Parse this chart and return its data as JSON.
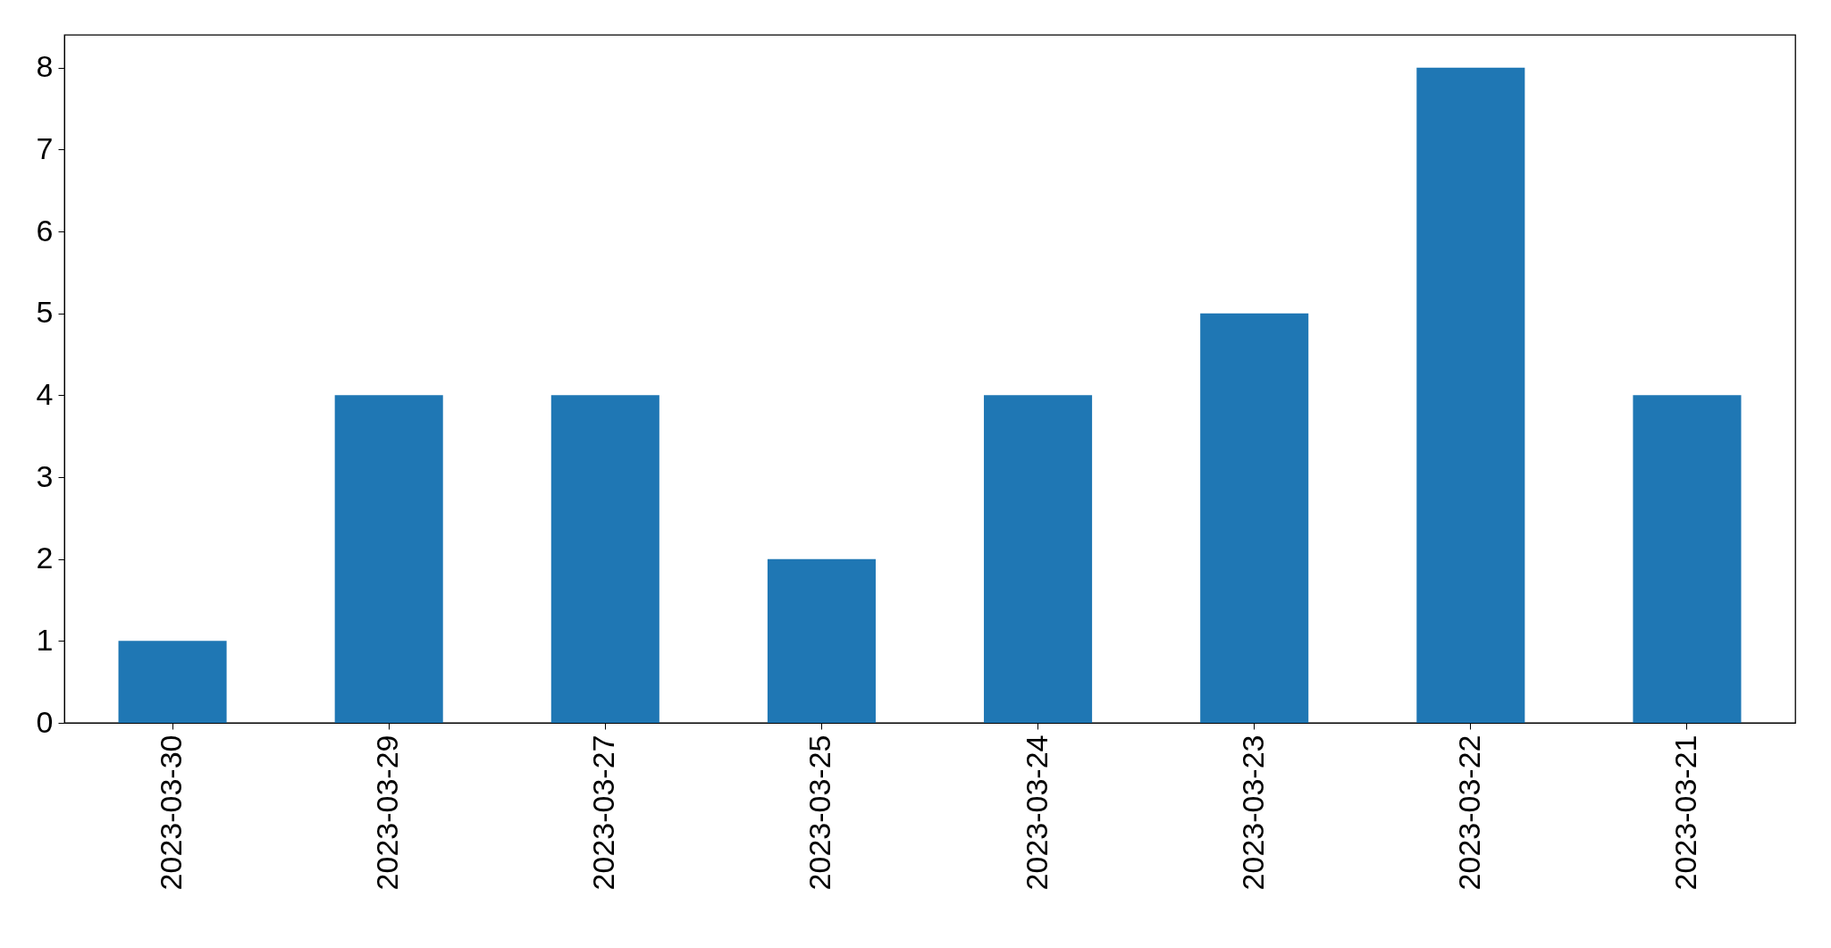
{
  "chart_data": {
    "type": "bar",
    "categories": [
      "2023-03-30",
      "2023-03-29",
      "2023-03-27",
      "2023-03-25",
      "2023-03-24",
      "2023-03-23",
      "2023-03-22",
      "2023-03-21"
    ],
    "values": [
      1,
      4,
      4,
      2,
      4,
      5,
      8,
      4
    ],
    "color": "#1f77b4",
    "ylim": [
      0,
      8.4
    ],
    "yticks": [
      0,
      1,
      2,
      3,
      4,
      5,
      6,
      7,
      8
    ],
    "grid": false
  }
}
